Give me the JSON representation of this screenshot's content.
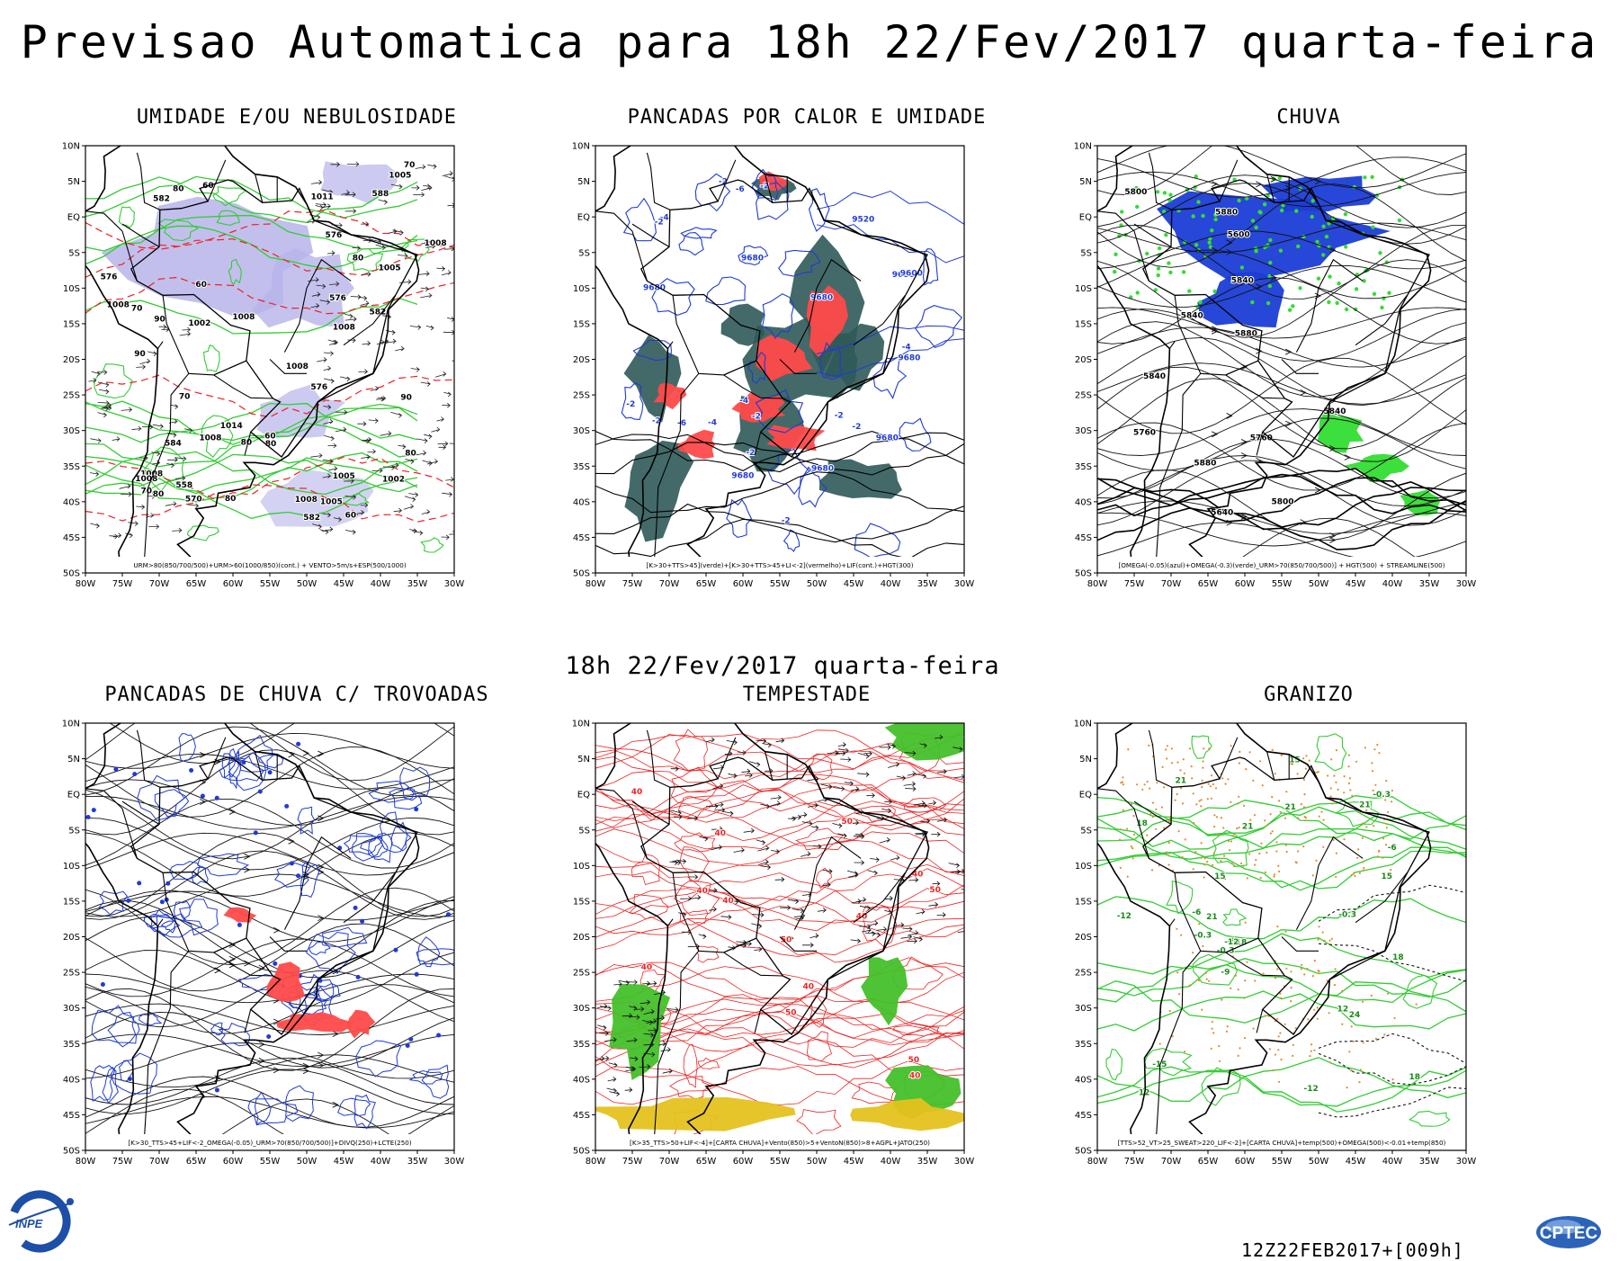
{
  "header": {
    "title": "Previsao Automatica  para 18h 22/Fev/2017 quarta-feira",
    "valid_time": "18h 22/Fev/2017 quarta-feira"
  },
  "footer": {
    "run": "12Z22FEB2017+[009h]",
    "logo_left": "INPE",
    "logo_right": "CPTEC"
  },
  "axes": {
    "lat_labels": [
      "10N",
      "5N",
      "EQ",
      "5S",
      "10S",
      "15S",
      "20S",
      "25S",
      "30S",
      "35S",
      "40S",
      "45S",
      "50S"
    ],
    "lon_labels": [
      "80W",
      "75W",
      "70W",
      "65W",
      "60W",
      "55W",
      "50W",
      "45W",
      "40W",
      "35W",
      "30W"
    ]
  },
  "colors": {
    "humidity_fill": "#b7b4ea",
    "green_contour": "#33cc33",
    "red_contour": "#ee2222",
    "blue_contour": "#1f3bd6",
    "dark_teal": "#2f5a58",
    "hot_red": "#ff4a4a",
    "omega_blue": "#1b3dd6",
    "bright_green": "#33dd33",
    "storm_green": "#44c02a",
    "yellow": "#e5c21f",
    "orange": "#e38a2c"
  },
  "panels": [
    {
      "id": "umidade",
      "title": "UMIDADE E/OU NEBULOSIDADE",
      "legend": "URM>80(850/700/500)+URM>60(1000/850)(cont.) + VENTO>5m/s+ESP(500/1000)",
      "labels": [
        "1005",
        "1008",
        "1008",
        "1008",
        "1008",
        "1005",
        "1002",
        "1005",
        "1008",
        "1002",
        "1008",
        "1008",
        "1008",
        "1005",
        "1008",
        "1014",
        "80",
        "80",
        "80",
        "80",
        "70",
        "90",
        "80",
        "70",
        "80",
        "90",
        "70",
        "90",
        "60",
        "80",
        "70",
        "60",
        "60",
        "60",
        "576",
        "582",
        "582",
        "576",
        "588",
        "576",
        "576",
        "570",
        "582",
        "584",
        "558",
        "1011"
      ]
    },
    {
      "id": "pancadas_calor",
      "title": "PANCADAS POR CALOR E UMIDADE",
      "legend": "[K>30+TTS>45](verde)+[K>30+TTS>45+LI<-2](vermelho)+LIF(cont.)+HGT(300)",
      "labels": [
        "9680",
        "9680",
        "9680",
        "9680",
        "9680",
        "9680",
        "9680",
        "9600",
        "9520",
        "9680",
        "-2",
        "-2",
        "-2",
        "-2",
        "-4",
        "-6",
        "-2",
        "-4",
        "-2",
        "-2",
        "-4",
        "-6",
        "-2",
        "-4",
        "-2",
        "-2"
      ]
    },
    {
      "id": "chuva",
      "title": "CHUVA",
      "legend": "[OMEGA(-0.05)(azul)+OMEGA(-0.3)(verde)_URM>70(850/700/500)] + HGT(500) + STREAMLINE(500)",
      "labels": [
        "5840",
        "5840",
        "5880",
        "5880",
        "5880",
        "5840",
        "5800",
        "5760",
        "5840",
        "5800",
        "5760",
        "5640",
        "5600"
      ]
    },
    {
      "id": "pancadas_trovoadas",
      "title": "PANCADAS DE CHUVA C/ TROVOADAS",
      "legend": "[K>30_TTS>45+LIF<-2_OMEGA(-0.05)_URM>70(850/700/500)]+DIVQ(250)+LCTE(250)",
      "labels": []
    },
    {
      "id": "tempestade",
      "title": "TEMPESTADE",
      "legend": "[K>35_TTS>50+LIF<-4]+[CARTA CHUVA]+Vento(850)>5+VentoN(850)>8+AGPL+JATO(250)",
      "labels": [
        "40",
        "40",
        "50",
        "40",
        "50",
        "40",
        "40",
        "50",
        "40",
        "50",
        "40",
        "50",
        "40",
        "40"
      ]
    },
    {
      "id": "granizo",
      "title": "GRANIZO",
      "legend": "[TTS>52_VT>25_SWEAT>220_LIF<-2]+[CARTA CHUVA]+temp(500)+OMEGA(500)<-0.01+temp(850)",
      "labels": [
        "21",
        "21",
        "18",
        "12",
        "-0.3",
        "-0.3",
        "-6",
        "18",
        "21",
        "15",
        "18",
        "-6",
        "-9",
        "21",
        "24",
        "21",
        "-0.3",
        "15",
        "18",
        "-12",
        "-9",
        "15",
        "12",
        "-15",
        "-12",
        "-0.3",
        "-12"
      ]
    }
  ]
}
